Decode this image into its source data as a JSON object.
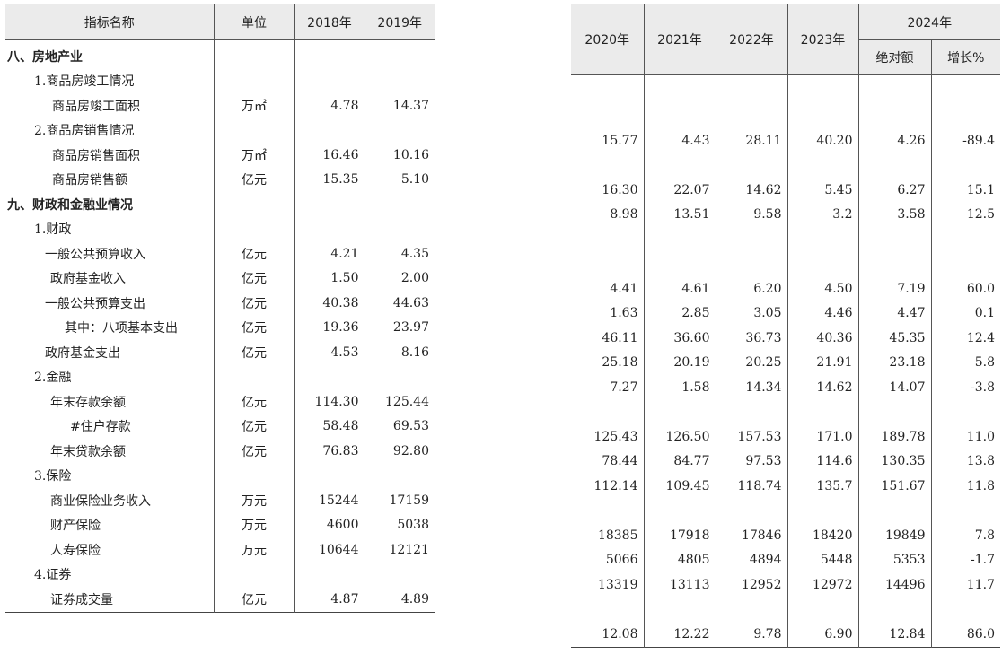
{
  "headers": {
    "name": "指标名称",
    "unit": "单位",
    "y2018": "2018年",
    "y2019": "2019年",
    "y2020": "2020年",
    "y2021": "2021年",
    "y2022": "2022年",
    "y2023": "2023年",
    "y2024": "2024年",
    "absolute": "绝对额",
    "growth": "增长%"
  },
  "rows": [
    {
      "name": "八、房地产业",
      "unit": "",
      "v2018": "",
      "v2019": "",
      "v2020": "",
      "v2021": "",
      "v2022": "",
      "v2023": "",
      "abs": "",
      "growth": ""
    },
    {
      "name": "1.商品房竣工情况",
      "unit": "",
      "v2018": "",
      "v2019": "",
      "v2020": "",
      "v2021": "",
      "v2022": "",
      "v2023": "",
      "abs": "",
      "growth": ""
    },
    {
      "name": "商品房竣工面积",
      "unit": "万㎡",
      "v2018": "4.78",
      "v2019": "14.37",
      "v2020": "15.77",
      "v2021": "4.43",
      "v2022": "28.11",
      "v2023": "40.20",
      "abs": "4.26",
      "growth": "-89.4"
    },
    {
      "name": "2.商品房销售情况",
      "unit": "",
      "v2018": "",
      "v2019": "",
      "v2020": "",
      "v2021": "",
      "v2022": "",
      "v2023": "",
      "abs": "",
      "growth": ""
    },
    {
      "name": "商品房销售面积",
      "unit": "万㎡",
      "v2018": "16.46",
      "v2019": "10.16",
      "v2020": "16.30",
      "v2021": "22.07",
      "v2022": "14.62",
      "v2023": "5.45",
      "abs": "6.27",
      "growth": "15.1"
    },
    {
      "name": "商品房销售额",
      "unit": "亿元",
      "v2018": "15.35",
      "v2019": "5.10",
      "v2020": "8.98",
      "v2021": "13.51",
      "v2022": "9.58",
      "v2023": "3.2",
      "abs": "3.58",
      "growth": "12.5"
    },
    {
      "name": "九、财政和金融业情况",
      "unit": "",
      "v2018": "",
      "v2019": "",
      "v2020": "",
      "v2021": "",
      "v2022": "",
      "v2023": "",
      "abs": "",
      "growth": ""
    },
    {
      "name": "1.财政",
      "unit": "",
      "v2018": "",
      "v2019": "",
      "v2020": "",
      "v2021": "",
      "v2022": "",
      "v2023": "",
      "abs": "",
      "growth": ""
    },
    {
      "name": "一般公共预算收入",
      "unit": "亿元",
      "v2018": "4.21",
      "v2019": "4.35",
      "v2020": "4.41",
      "v2021": "4.61",
      "v2022": "6.20",
      "v2023": "4.50",
      "abs": "7.19",
      "growth": "60.0"
    },
    {
      "name": "政府基金收入",
      "unit": "亿元",
      "v2018": "1.50",
      "v2019": "2.00",
      "v2020": "1.63",
      "v2021": "2.85",
      "v2022": "3.05",
      "v2023": "4.46",
      "abs": "4.47",
      "growth": "0.1"
    },
    {
      "name": "一般公共预算支出",
      "unit": "亿元",
      "v2018": "40.38",
      "v2019": "44.63",
      "v2020": "46.11",
      "v2021": "36.60",
      "v2022": "36.73",
      "v2023": "40.36",
      "abs": "45.35",
      "growth": "12.4"
    },
    {
      "name": "其中：八项基本支出",
      "unit": "亿元",
      "v2018": "19.36",
      "v2019": "23.97",
      "v2020": "25.18",
      "v2021": "20.19",
      "v2022": "20.25",
      "v2023": "21.91",
      "abs": "23.18",
      "growth": "5.8"
    },
    {
      "name": "政府基金支出",
      "unit": "亿元",
      "v2018": "4.53",
      "v2019": "8.16",
      "v2020": "7.27",
      "v2021": "1.58",
      "v2022": "14.34",
      "v2023": "14.62",
      "abs": "14.07",
      "growth": "-3.8"
    },
    {
      "name": "2.金融",
      "unit": "",
      "v2018": "",
      "v2019": "",
      "v2020": "",
      "v2021": "",
      "v2022": "",
      "v2023": "",
      "abs": "",
      "growth": ""
    },
    {
      "name": "年末存款余额",
      "unit": "亿元",
      "v2018": "114.30",
      "v2019": "125.44",
      "v2020": "125.43",
      "v2021": "126.50",
      "v2022": "157.53",
      "v2023": "171.0",
      "abs": "189.78",
      "growth": "11.0"
    },
    {
      "name": "#住户存款",
      "unit": "亿元",
      "v2018": "58.48",
      "v2019": "69.53",
      "v2020": "78.44",
      "v2021": "84.77",
      "v2022": "97.53",
      "v2023": "114.6",
      "abs": "130.35",
      "growth": "13.8"
    },
    {
      "name": "年末贷款余额",
      "unit": "亿元",
      "v2018": "76.83",
      "v2019": "92.80",
      "v2020": "112.14",
      "v2021": "109.45",
      "v2022": "118.74",
      "v2023": "135.7",
      "abs": "151.67",
      "growth": "11.8"
    },
    {
      "name": "3.保险",
      "unit": "",
      "v2018": "",
      "v2019": "",
      "v2020": "",
      "v2021": "",
      "v2022": "",
      "v2023": "",
      "abs": "",
      "growth": ""
    },
    {
      "name": "商业保险业务收入",
      "unit": "万元",
      "v2018": "15244",
      "v2019": "17159",
      "v2020": "18385",
      "v2021": "17918",
      "v2022": "17846",
      "v2023": "18420",
      "abs": "19849",
      "growth": "7.8"
    },
    {
      "name": "财产保险",
      "unit": "万元",
      "v2018": "4600",
      "v2019": "5038",
      "v2020": "5066",
      "v2021": "4805",
      "v2022": "4894",
      "v2023": "5448",
      "abs": "5353",
      "growth": "-1.7"
    },
    {
      "name": "人寿保险",
      "unit": "万元",
      "v2018": "10644",
      "v2019": "12121",
      "v2020": "13319",
      "v2021": "13113",
      "v2022": "12952",
      "v2023": "12972",
      "abs": "14496",
      "growth": "11.7"
    },
    {
      "name": "4.证券",
      "unit": "",
      "v2018": "",
      "v2019": "",
      "v2020": "",
      "v2021": "",
      "v2022": "",
      "v2023": "",
      "abs": "",
      "growth": ""
    },
    {
      "name": "证券成交量",
      "unit": "亿元",
      "v2018": "4.87",
      "v2019": "4.89",
      "v2020": "12.08",
      "v2021": "12.22",
      "v2022": "9.78",
      "v2023": "6.90",
      "abs": "12.84",
      "growth": "86.0"
    }
  ]
}
